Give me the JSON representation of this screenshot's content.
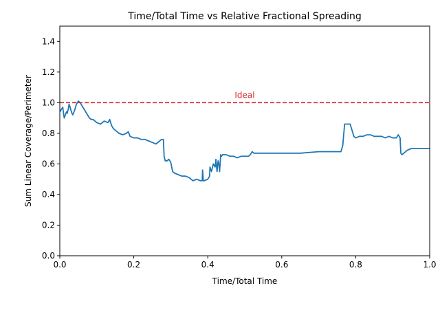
{
  "chart_data": {
    "type": "line",
    "title": "Time/Total Time vs Relative Fractional Spreading",
    "xlabel": "Time/Total Time",
    "ylabel": "Sum Linear Coverage/Perimeter",
    "xlim": [
      0,
      1
    ],
    "ylim": [
      0,
      1.5
    ],
    "xticks": [
      0,
      0.2,
      0.4,
      0.6,
      0.8,
      1.0
    ],
    "xtick_labels": [
      "0.0",
      "0.2",
      "0.4",
      "0.6",
      "0.8",
      "1.0"
    ],
    "yticks": [
      0,
      0.2,
      0.4,
      0.6,
      0.8,
      1.0,
      1.2,
      1.4
    ],
    "ytick_labels": [
      "0.0",
      "0.2",
      "0.4",
      "0.6",
      "0.8",
      "1.0",
      "1.2",
      "1.4"
    ],
    "grid": false,
    "reference_line": {
      "y": 1.0,
      "label": "Ideal",
      "color": "#d62728",
      "style": "dashed"
    },
    "series": [
      {
        "color": "#1f77b4",
        "x": [
          0,
          0.005,
          0.008,
          0.01,
          0.012,
          0.015,
          0.018,
          0.02,
          0.023,
          0.025,
          0.028,
          0.03,
          0.033,
          0.035,
          0.04,
          0.045,
          0.05,
          0.055,
          0.06,
          0.065,
          0.07,
          0.075,
          0.08,
          0.085,
          0.09,
          0.1,
          0.11,
          0.12,
          0.13,
          0.135,
          0.14,
          0.145,
          0.15,
          0.155,
          0.16,
          0.17,
          0.18,
          0.185,
          0.19,
          0.2,
          0.21,
          0.22,
          0.23,
          0.24,
          0.25,
          0.26,
          0.27,
          0.275,
          0.28,
          0.282,
          0.285,
          0.29,
          0.295,
          0.3,
          0.305,
          0.31,
          0.32,
          0.33,
          0.34,
          0.35,
          0.36,
          0.37,
          0.38,
          0.385,
          0.386,
          0.388,
          0.39,
          0.4,
          0.405,
          0.406,
          0.41,
          0.415,
          0.42,
          0.422,
          0.425,
          0.428,
          0.43,
          0.432,
          0.435,
          0.437,
          0.44,
          0.442,
          0.45,
          0.46,
          0.47,
          0.48,
          0.49,
          0.5,
          0.51,
          0.515,
          0.52,
          0.525,
          0.53,
          0.55,
          0.6,
          0.65,
          0.7,
          0.74,
          0.76,
          0.765,
          0.77,
          0.775,
          0.78,
          0.785,
          0.79,
          0.795,
          0.8,
          0.81,
          0.82,
          0.83,
          0.84,
          0.85,
          0.86,
          0.87,
          0.88,
          0.89,
          0.9,
          0.91,
          0.915,
          0.92,
          0.922,
          0.925,
          0.93,
          0.935,
          0.94,
          0.95,
          0.96,
          0.97,
          0.98,
          0.99,
          1.0
        ],
        "y": [
          0.94,
          0.96,
          0.97,
          0.93,
          0.9,
          0.92,
          0.94,
          0.93,
          0.96,
          0.99,
          0.97,
          0.95,
          0.93,
          0.92,
          0.95,
          0.99,
          1.01,
          1.0,
          0.98,
          0.96,
          0.94,
          0.92,
          0.9,
          0.89,
          0.89,
          0.87,
          0.86,
          0.88,
          0.87,
          0.89,
          0.85,
          0.83,
          0.82,
          0.81,
          0.8,
          0.79,
          0.8,
          0.81,
          0.78,
          0.77,
          0.77,
          0.76,
          0.76,
          0.75,
          0.74,
          0.73,
          0.75,
          0.76,
          0.76,
          0.65,
          0.62,
          0.62,
          0.63,
          0.61,
          0.55,
          0.54,
          0.53,
          0.52,
          0.52,
          0.51,
          0.49,
          0.5,
          0.49,
          0.49,
          0.56,
          0.49,
          0.49,
          0.5,
          0.52,
          0.58,
          0.55,
          0.6,
          0.58,
          0.63,
          0.55,
          0.62,
          0.6,
          0.55,
          0.66,
          0.65,
          0.66,
          0.66,
          0.66,
          0.65,
          0.65,
          0.64,
          0.65,
          0.65,
          0.65,
          0.66,
          0.68,
          0.67,
          0.67,
          0.67,
          0.67,
          0.67,
          0.68,
          0.68,
          0.68,
          0.72,
          0.86,
          0.86,
          0.86,
          0.86,
          0.82,
          0.78,
          0.77,
          0.78,
          0.78,
          0.79,
          0.79,
          0.78,
          0.78,
          0.78,
          0.77,
          0.78,
          0.77,
          0.77,
          0.79,
          0.77,
          0.67,
          0.66,
          0.67,
          0.68,
          0.69,
          0.7,
          0.7,
          0.7,
          0.7,
          0.7,
          0.7
        ]
      }
    ]
  }
}
